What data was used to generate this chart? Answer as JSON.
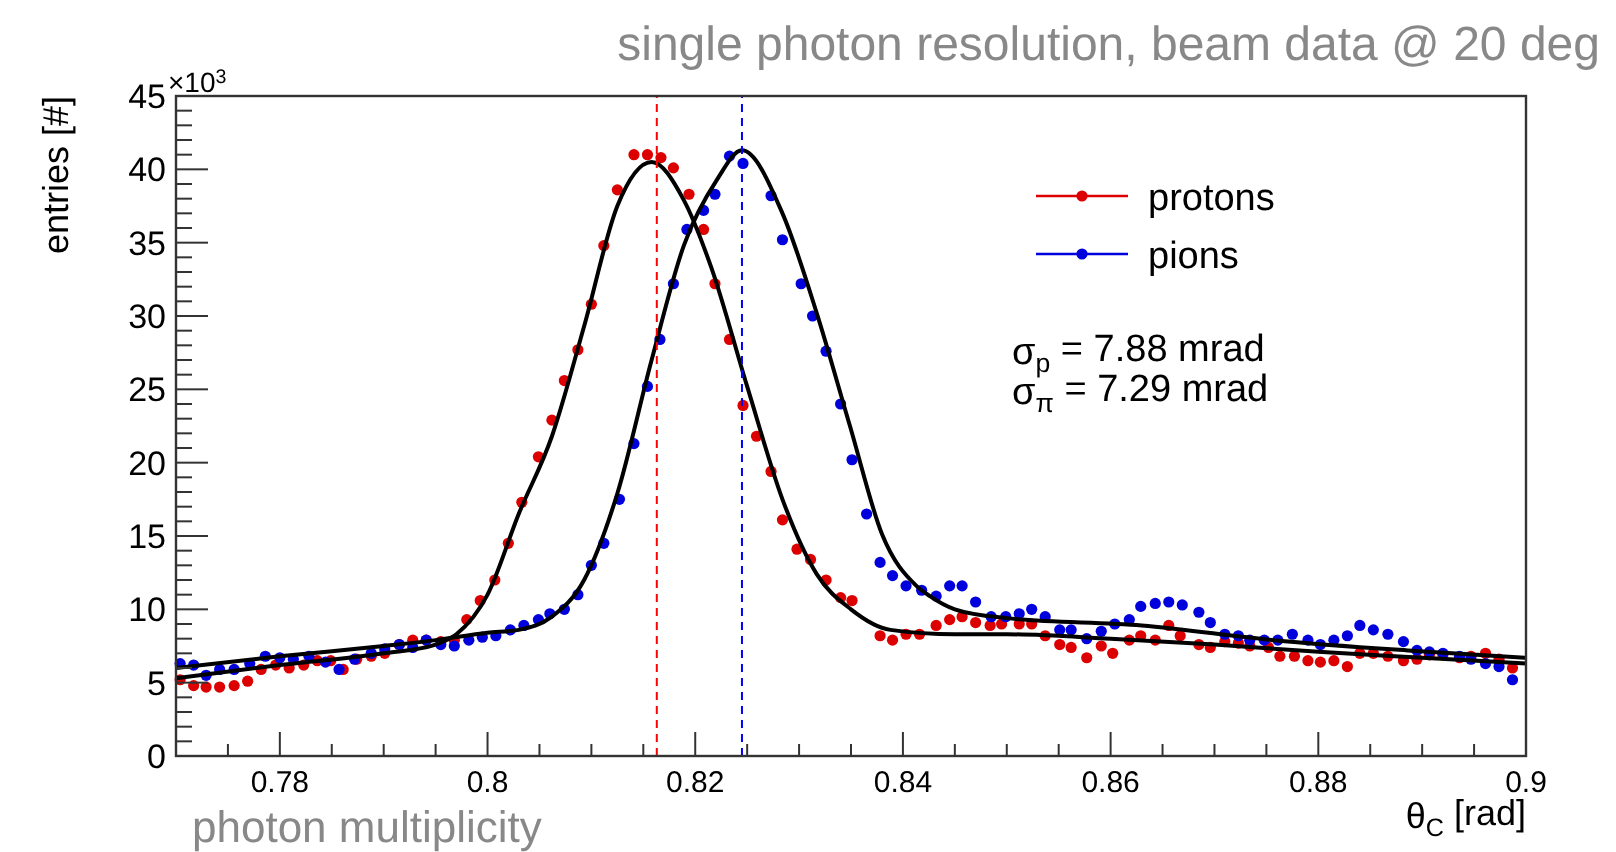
{
  "chart_data": {
    "type": "scatter",
    "title": "single photon resolution, beam data @ 20 deg",
    "xlabel": "θ$_{C}$ [rad]",
    "ylabel": "entries [#]",
    "annotations": [
      "×10$^{3}$",
      "σ$_{p}$ = 7.88 mrad",
      "σ$_{π}$ = 7.29 mrad",
      "photon multiplicity"
    ],
    "xlim": [
      0.77,
      0.9
    ],
    "ylim": [
      0,
      45
    ],
    "xticks": [
      {
        "value": 0.775,
        "label": null
      },
      0.78,
      {
        "value": 0.785,
        "label": null
      },
      {
        "value": 0.79,
        "label": null
      },
      {
        "value": 0.795,
        "label": null
      },
      0.8,
      {
        "value": 0.805,
        "label": null
      },
      {
        "value": 0.81,
        "label": null
      },
      {
        "value": 0.815,
        "label": null
      },
      0.82,
      {
        "value": 0.825,
        "label": null
      },
      {
        "value": 0.83,
        "label": null
      },
      {
        "value": 0.835,
        "label": null
      },
      0.84,
      {
        "value": 0.845,
        "label": null
      },
      {
        "value": 0.85,
        "label": null
      },
      {
        "value": 0.855,
        "label": null
      },
      0.86,
      {
        "value": 0.865,
        "label": null
      },
      {
        "value": 0.87,
        "label": null
      },
      {
        "value": 0.875,
        "label": null
      },
      0.88,
      {
        "value": 0.885,
        "label": null
      },
      {
        "value": 0.89,
        "label": null
      },
      {
        "value": 0.895,
        "label": null
      },
      0.9
    ],
    "yticks": [
      0,
      {
        "value": 1,
        "label": null
      },
      {
        "value": 2,
        "label": null
      },
      {
        "value": 3,
        "label": null
      },
      {
        "value": 4,
        "label": null
      },
      5,
      {
        "value": 6,
        "label": null
      },
      {
        "value": 7,
        "label": null
      },
      {
        "value": 8,
        "label": null
      },
      {
        "value": 9,
        "label": null
      },
      10,
      {
        "value": 11,
        "label": null
      },
      {
        "value": 12,
        "label": null
      },
      {
        "value": 13,
        "label": null
      },
      {
        "value": 14,
        "label": null
      },
      15,
      {
        "value": 16,
        "label": null
      },
      {
        "value": 17,
        "label": null
      },
      {
        "value": 18,
        "label": null
      },
      {
        "value": 19,
        "label": null
      },
      20,
      {
        "value": 21,
        "label": null
      },
      {
        "value": 22,
        "label": null
      },
      {
        "value": 23,
        "label": null
      },
      {
        "value": 24,
        "label": null
      },
      25,
      {
        "value": 26,
        "label": null
      },
      {
        "value": 27,
        "label": null
      },
      {
        "value": 28,
        "label": null
      },
      {
        "value": 29,
        "label": null
      },
      30,
      {
        "value": 31,
        "label": null
      },
      {
        "value": 32,
        "label": null
      },
      {
        "value": 33,
        "label": null
      },
      {
        "value": 34,
        "label": null
      },
      35,
      {
        "value": 36,
        "label": null
      },
      {
        "value": 37,
        "label": null
      },
      {
        "value": 38,
        "label": null
      },
      {
        "value": 39,
        "label": null
      },
      40,
      {
        "value": 41,
        "label": null
      },
      {
        "value": 42,
        "label": null
      },
      {
        "value": 43,
        "label": null
      },
      {
        "value": 44,
        "label": null
      },
      45
    ],
    "legend": "top right",
    "marker": "circle",
    "ref_lines": [
      {
        "axis": "x",
        "value": 0.8163,
        "color": "#ff0000",
        "line_style": "dashed"
      },
      {
        "axis": "x",
        "value": 0.8245,
        "color": "#0000ff",
        "line_style": "dashed"
      }
    ],
    "series": [
      {
        "name": "protons",
        "color": "#dd0000",
        "x": [
          0.7704,
          0.7717,
          0.7729,
          0.7742,
          0.7756,
          0.7769,
          0.7782,
          0.7796,
          0.7809,
          0.7823,
          0.7836,
          0.7849,
          0.7861,
          0.7874,
          0.7888,
          0.7901,
          0.7915,
          0.7928,
          0.7941,
          0.7955,
          0.7968,
          0.798,
          0.7993,
          0.8007,
          0.802,
          0.8033,
          0.8049,
          0.8062,
          0.8074,
          0.8087,
          0.81,
          0.8112,
          0.8125,
          0.8141,
          0.8154,
          0.8167,
          0.8179,
          0.8194,
          0.8208,
          0.8219,
          0.8233,
          0.8246,
          0.8259,
          0.8273,
          0.8284,
          0.8298,
          0.8311,
          0.8326,
          0.834,
          0.8351,
          0.8378,
          0.839,
          0.8403,
          0.8416,
          0.8432,
          0.8445,
          0.8457,
          0.847,
          0.8484,
          0.8495,
          0.8512,
          0.8524,
          0.8537,
          0.8551,
          0.8562,
          0.8577,
          0.8591,
          0.8602,
          0.8618,
          0.8629,
          0.8643,
          0.8656,
          0.8667,
          0.8685,
          0.8696,
          0.871,
          0.8723,
          0.8734,
          0.8752,
          0.8763,
          0.8777,
          0.879,
          0.8802,
          0.8815,
          0.8828,
          0.884,
          0.8853,
          0.8867,
          0.8882,
          0.8895,
          0.8907,
          0.892,
          0.8936,
          0.8947,
          0.8961,
          0.8974,
          0.8987
        ],
        "values": [
          5.2,
          4.8,
          4.7,
          4.7,
          4.8,
          5.1,
          5.9,
          6.2,
          6.0,
          6.2,
          6.5,
          6.5,
          5.9,
          6.6,
          6.8,
          7.0,
          7.6,
          7.9,
          7.9,
          7.8,
          7.9,
          9.3,
          10.6,
          12.0,
          14.5,
          17.3,
          20.4,
          22.9,
          25.6,
          27.7,
          30.8,
          34.8,
          38.6,
          41.0,
          41.0,
          40.8,
          40.1,
          38.3,
          35.9,
          32.2,
          28.4,
          23.9,
          21.8,
          19.4,
          16.1,
          14.1,
          13.4,
          12.0,
          10.8,
          10.6,
          8.2,
          7.9,
          8.3,
          8.3,
          8.9,
          9.3,
          9.5,
          9.1,
          8.9,
          9.0,
          9.0,
          9.0,
          8.2,
          7.6,
          7.4,
          6.7,
          7.5,
          7.0,
          7.9,
          8.2,
          7.9,
          8.9,
          8.2,
          7.6,
          7.4,
          7.8,
          7.7,
          7.5,
          7.4,
          6.8,
          6.8,
          6.5,
          6.4,
          6.5,
          6.1,
          7.0,
          7.0,
          6.8,
          6.5,
          6.6,
          6.9,
          6.9,
          6.7,
          6.8,
          7.0,
          6.6,
          6.0
        ]
      },
      {
        "name": "pions",
        "color": "#0000dd",
        "x": [
          0.7704,
          0.7717,
          0.7729,
          0.7742,
          0.7756,
          0.7771,
          0.7786,
          0.78,
          0.7813,
          0.7828,
          0.7844,
          0.7857,
          0.7872,
          0.7888,
          0.7901,
          0.7915,
          0.7928,
          0.7941,
          0.7955,
          0.7968,
          0.7982,
          0.7995,
          0.8008,
          0.8022,
          0.8035,
          0.8049,
          0.806,
          0.8074,
          0.8087,
          0.81,
          0.8112,
          0.8127,
          0.8141,
          0.8154,
          0.8166,
          0.8179,
          0.8192,
          0.8208,
          0.8219,
          0.8233,
          0.8246,
          0.8273,
          0.8284,
          0.8302,
          0.8313,
          0.8326,
          0.834,
          0.8351,
          0.8365,
          0.8378,
          0.839,
          0.8403,
          0.8418,
          0.8432,
          0.8445,
          0.8457,
          0.847,
          0.8485,
          0.8499,
          0.8512,
          0.8524,
          0.8537,
          0.8551,
          0.8562,
          0.8577,
          0.8591,
          0.8604,
          0.8618,
          0.8629,
          0.8643,
          0.8656,
          0.8669,
          0.8685,
          0.8696,
          0.871,
          0.8723,
          0.8734,
          0.8748,
          0.8761,
          0.8775,
          0.879,
          0.8802,
          0.8815,
          0.8828,
          0.884,
          0.8853,
          0.8867,
          0.8882,
          0.8895,
          0.8907,
          0.892,
          0.8936,
          0.8947,
          0.8961,
          0.8974,
          0.8987
        ],
        "values": [
          6.3,
          6.2,
          5.5,
          5.9,
          5.9,
          6.3,
          6.8,
          6.7,
          6.6,
          6.8,
          6.4,
          5.9,
          6.6,
          7.0,
          7.3,
          7.6,
          7.4,
          7.9,
          7.6,
          7.5,
          7.9,
          8.1,
          8.2,
          8.6,
          8.9,
          9.3,
          9.7,
          10.0,
          11.0,
          13.0,
          14.5,
          17.5,
          21.3,
          25.2,
          28.4,
          32.2,
          35.9,
          37.2,
          38.3,
          40.9,
          40.4,
          38.2,
          35.2,
          32.2,
          30.0,
          27.6,
          24.0,
          20.2,
          16.5,
          13.2,
          12.3,
          11.6,
          11.3,
          10.9,
          11.6,
          11.6,
          10.5,
          9.5,
          9.5,
          9.7,
          10.0,
          9.5,
          8.6,
          8.6,
          8.0,
          8.5,
          9.0,
          9.3,
          10.2,
          10.4,
          10.5,
          10.3,
          9.8,
          9.1,
          8.3,
          8.2,
          7.9,
          7.9,
          7.9,
          8.3,
          7.9,
          7.6,
          7.9,
          8.2,
          8.9,
          8.6,
          8.3,
          7.8,
          7.2,
          7.1,
          7.0,
          6.8,
          6.6,
          6.3,
          6.1,
          5.2
        ]
      },
      {
        "type": "line",
        "marker": "none",
        "color": "#000000",
        "x": [
          0.77,
          0.78,
          0.79,
          0.795,
          0.797,
          0.8,
          0.803,
          0.8062,
          0.8093,
          0.8125,
          0.8158,
          0.8189,
          0.8215,
          0.825,
          0.8284,
          0.8317,
          0.835,
          0.8388,
          0.845,
          0.85,
          0.86,
          0.87,
          0.88,
          0.89,
          0.9
        ],
        "values": [
          5.3,
          6.2,
          7.0,
          7.6,
          8.3,
          11.0,
          16.5,
          21.8,
          29.3,
          37.5,
          40.5,
          37.9,
          33.4,
          25.2,
          17.5,
          12.4,
          10.0,
          8.6,
          8.3,
          8.3,
          8.0,
          7.6,
          7.1,
          6.7,
          6.3
        ]
      },
      {
        "type": "line",
        "marker": "none",
        "color": "#000000",
        "x": [
          0.77,
          0.78,
          0.79,
          0.795,
          0.8,
          0.803,
          0.8062,
          0.8093,
          0.8125,
          0.8158,
          0.8189,
          0.8221,
          0.8245,
          0.8284,
          0.8317,
          0.8349,
          0.838,
          0.8413,
          0.8426,
          0.845,
          0.85,
          0.863,
          0.8757,
          0.8886,
          0.9
        ],
        "values": [
          6.0,
          6.8,
          7.5,
          7.9,
          8.4,
          8.6,
          9.5,
          12.0,
          17.9,
          27.0,
          34.8,
          39.3,
          41.3,
          37.0,
          30.2,
          22.5,
          15.1,
          11.6,
          10.9,
          10.0,
          9.4,
          8.9,
          7.9,
          7.2,
          6.7
        ]
      }
    ]
  }
}
